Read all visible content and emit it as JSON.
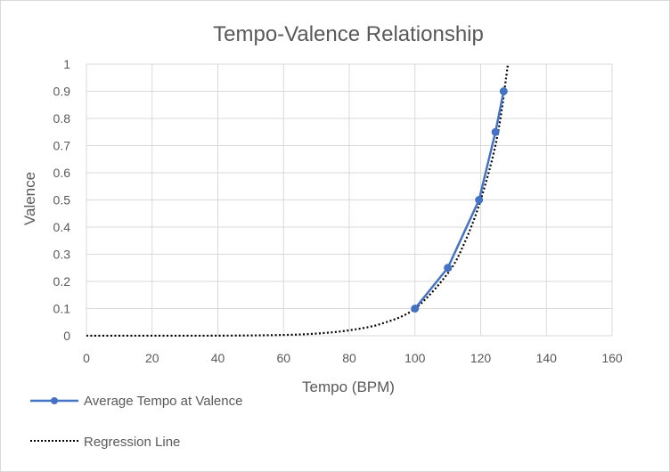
{
  "chart_data": {
    "type": "line",
    "title": "Tempo-Valence Relationship",
    "xlabel": "Tempo (BPM)",
    "ylabel": "Valence",
    "xlim": [
      0,
      160
    ],
    "ylim": [
      0,
      1
    ],
    "x_ticks": [
      "0",
      "20",
      "40",
      "60",
      "80",
      "100",
      "120",
      "140",
      "160"
    ],
    "y_ticks": [
      "0",
      "0.1",
      "0.2",
      "0.3",
      "0.4",
      "0.5",
      "0.6",
      "0.7",
      "0.8",
      "0.9",
      "1"
    ],
    "grid": true,
    "legend_position": "bottom-left",
    "series": [
      {
        "name": "Average Tempo at Valence",
        "style": "solid line with circle markers",
        "color": "#4472c4",
        "x": [
          100,
          110,
          119.5,
          124.5,
          127
        ],
        "y": [
          0.1,
          0.25,
          0.5,
          0.75,
          0.9
        ]
      },
      {
        "name": "Regression Line",
        "style": "dotted line",
        "color": "#000000",
        "x": [
          0,
          40,
          60,
          70,
          80,
          90,
          100,
          110,
          115,
          120,
          125,
          128.3
        ],
        "y": [
          0,
          0.0004,
          0.003,
          0.008,
          0.02,
          0.045,
          0.1,
          0.23,
          0.34,
          0.5,
          0.73,
          1.0
        ]
      }
    ]
  }
}
